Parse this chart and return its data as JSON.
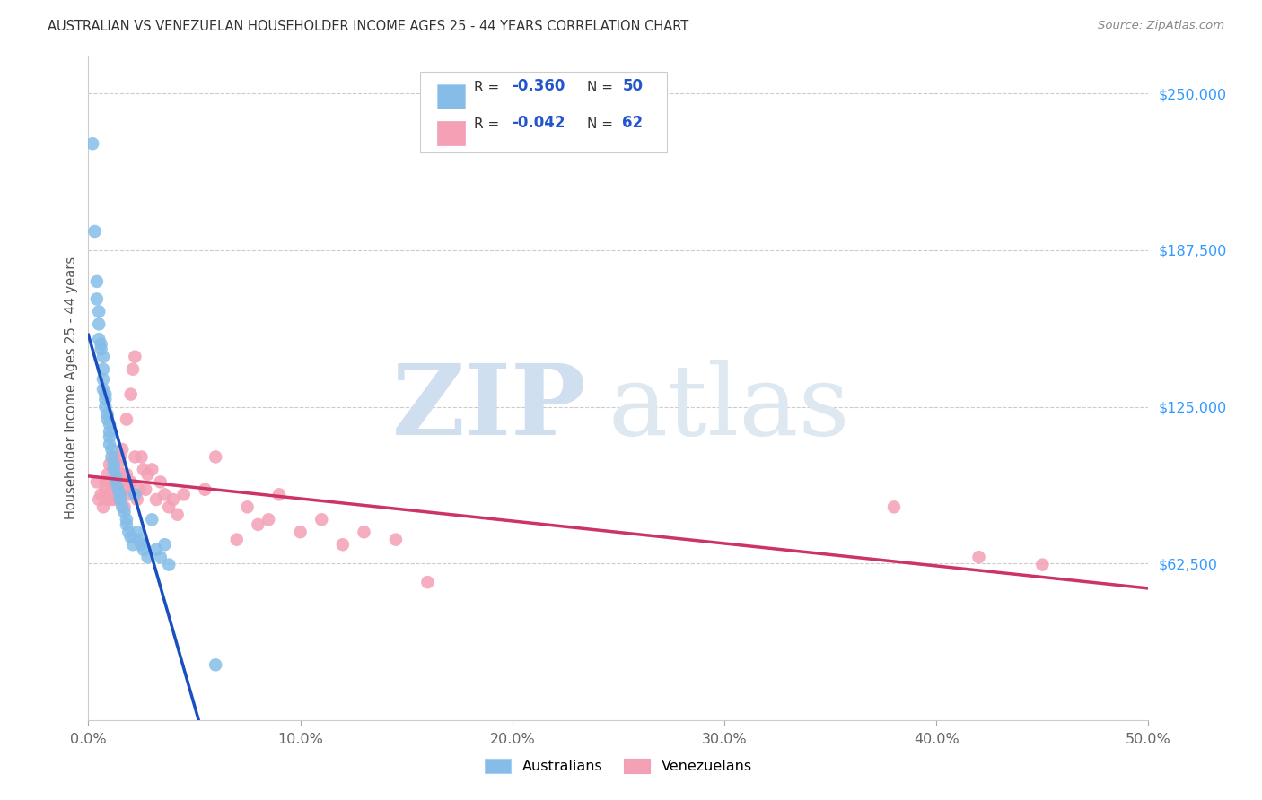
{
  "title": "AUSTRALIAN VS VENEZUELAN HOUSEHOLDER INCOME AGES 25 - 44 YEARS CORRELATION CHART",
  "source": "Source: ZipAtlas.com",
  "ylabel": "Householder Income Ages 25 - 44 years",
  "xmin": 0.0,
  "xmax": 0.5,
  "ymin": 0,
  "ymax": 265000,
  "ytick_vals": [
    62500,
    125000,
    187500,
    250000
  ],
  "ytick_labels": [
    "$62,500",
    "$125,000",
    "$187,500",
    "$250,000"
  ],
  "xtick_vals": [
    0.0,
    0.1,
    0.2,
    0.3,
    0.4,
    0.5
  ],
  "xtick_labels": [
    "0.0%",
    "10.0%",
    "20.0%",
    "30.0%",
    "40.0%",
    "50.0%"
  ],
  "blue_color": "#85bde8",
  "pink_color": "#f4a0b5",
  "line_blue": "#1a4fbf",
  "line_pink": "#cc3366",
  "r_aus": "-0.360",
  "n_aus": "50",
  "r_ven": "-0.042",
  "n_ven": "62",
  "label_aus": "Australians",
  "label_ven": "Venezuelans",
  "source_str": "Source: ZipAtlas.com",
  "aus_x": [
    0.002,
    0.003,
    0.004,
    0.004,
    0.005,
    0.005,
    0.005,
    0.006,
    0.006,
    0.007,
    0.007,
    0.007,
    0.007,
    0.008,
    0.008,
    0.008,
    0.009,
    0.009,
    0.01,
    0.01,
    0.01,
    0.01,
    0.011,
    0.011,
    0.012,
    0.012,
    0.013,
    0.013,
    0.014,
    0.015,
    0.015,
    0.016,
    0.017,
    0.018,
    0.018,
    0.019,
    0.02,
    0.021,
    0.022,
    0.023,
    0.024,
    0.025,
    0.026,
    0.028,
    0.03,
    0.032,
    0.034,
    0.036,
    0.038,
    0.06
  ],
  "aus_y": [
    230000,
    195000,
    175000,
    168000,
    163000,
    158000,
    152000,
    150000,
    148000,
    145000,
    140000,
    136000,
    132000,
    130000,
    128000,
    125000,
    122000,
    120000,
    118000,
    115000,
    113000,
    110000,
    108000,
    105000,
    102000,
    100000,
    97000,
    95000,
    92000,
    90000,
    88000,
    85000,
    83000,
    80000,
    78000,
    75000,
    73000,
    70000,
    90000,
    75000,
    72000,
    70000,
    68000,
    65000,
    80000,
    68000,
    65000,
    70000,
    62000,
    22000
  ],
  "ven_x": [
    0.004,
    0.005,
    0.006,
    0.007,
    0.008,
    0.008,
    0.009,
    0.009,
    0.01,
    0.01,
    0.011,
    0.011,
    0.012,
    0.012,
    0.013,
    0.013,
    0.014,
    0.014,
    0.015,
    0.015,
    0.016,
    0.016,
    0.017,
    0.017,
    0.018,
    0.018,
    0.019,
    0.02,
    0.02,
    0.021,
    0.022,
    0.022,
    0.023,
    0.024,
    0.025,
    0.026,
    0.027,
    0.028,
    0.03,
    0.032,
    0.034,
    0.036,
    0.038,
    0.04,
    0.042,
    0.045,
    0.055,
    0.06,
    0.07,
    0.075,
    0.08,
    0.085,
    0.09,
    0.1,
    0.11,
    0.12,
    0.13,
    0.145,
    0.16,
    0.38,
    0.42,
    0.45
  ],
  "ven_y": [
    95000,
    88000,
    90000,
    85000,
    95000,
    92000,
    98000,
    88000,
    102000,
    95000,
    92000,
    88000,
    105000,
    95000,
    98000,
    88000,
    102000,
    92000,
    105000,
    95000,
    108000,
    98000,
    92000,
    85000,
    120000,
    98000,
    90000,
    130000,
    95000,
    140000,
    145000,
    105000,
    88000,
    92000,
    105000,
    100000,
    92000,
    98000,
    100000,
    88000,
    95000,
    90000,
    85000,
    88000,
    82000,
    90000,
    92000,
    105000,
    72000,
    85000,
    78000,
    80000,
    90000,
    75000,
    80000,
    70000,
    75000,
    72000,
    55000,
    85000,
    65000,
    62000
  ]
}
